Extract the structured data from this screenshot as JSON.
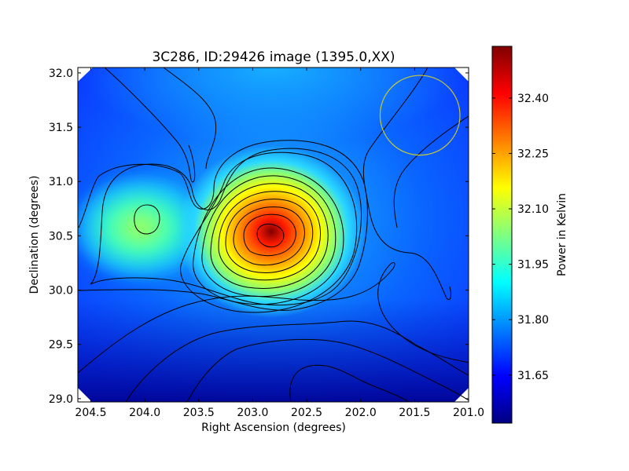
{
  "chart_data": {
    "type": "heatmap",
    "title": "3C286, ID:29426 image (1395.0,XX)",
    "xlabel": "Right Ascension (degrees)",
    "ylabel": "Declination (degrees)",
    "xlim": [
      204.62,
      201.0
    ],
    "ylim": [
      28.97,
      32.05
    ],
    "x_ticks": [
      "204.5",
      "204.0",
      "203.5",
      "203.0",
      "202.5",
      "202.0",
      "201.5",
      "201.0"
    ],
    "x_tick_values": [
      204.5,
      204.0,
      203.5,
      203.0,
      202.5,
      202.0,
      201.5,
      201.0
    ],
    "y_ticks": [
      "29.0",
      "29.5",
      "30.0",
      "30.5",
      "31.0",
      "31.5",
      "32.0"
    ],
    "y_tick_values": [
      29.0,
      29.5,
      30.0,
      30.5,
      31.0,
      31.5,
      32.0
    ],
    "colormap": "jet",
    "colorbar": {
      "label": "Power in Kelvin",
      "range": [
        31.52,
        32.54
      ],
      "ticks": [
        "31.65",
        "31.80",
        "31.95",
        "32.10",
        "32.25",
        "32.40"
      ],
      "tick_values": [
        31.65,
        31.8,
        31.95,
        32.1,
        32.25,
        32.4
      ]
    },
    "peaks": [
      {
        "ra": 202.82,
        "dec": 30.47,
        "value": 32.52
      },
      {
        "ra": 203.97,
        "dec": 30.66,
        "value": 32.0
      }
    ],
    "minimum": {
      "ra": 202.45,
      "dec": 29.1,
      "value": 31.55
    },
    "beam_circle": {
      "ra": 201.45,
      "dec": 31.61,
      "radius_deg": 0.37,
      "color": "#c8c832"
    }
  }
}
